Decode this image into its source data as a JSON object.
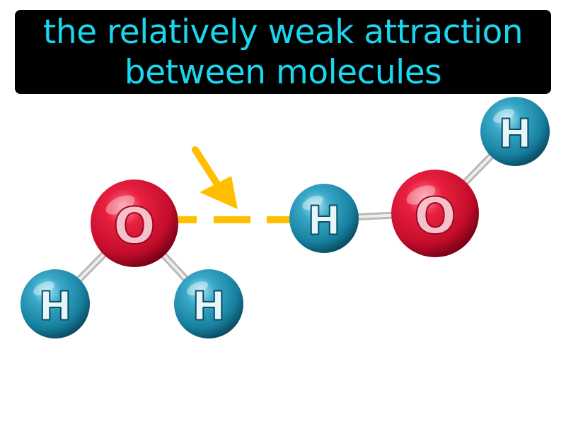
{
  "definition": {
    "line1": "the relatively weak attraction",
    "line2": "between molecules"
  },
  "colors": {
    "title_background": "#000000",
    "title_text": "#1ad6ee",
    "oxygen": "#d6102f",
    "hydrogen": "#1e8fb0",
    "bond": "#c8c8c8",
    "attraction": "#ffbf00",
    "label": "#ffffff"
  },
  "molecules": {
    "left": {
      "oxygen": {
        "label": "O"
      },
      "hydrogen_1": {
        "label": "H"
      },
      "hydrogen_2": {
        "label": "H"
      }
    },
    "right": {
      "oxygen": {
        "label": "O"
      },
      "hydrogen_1": {
        "label": "H"
      },
      "hydrogen_2": {
        "label": "H"
      }
    }
  },
  "icons": {
    "arrow": "arrow-icon"
  }
}
